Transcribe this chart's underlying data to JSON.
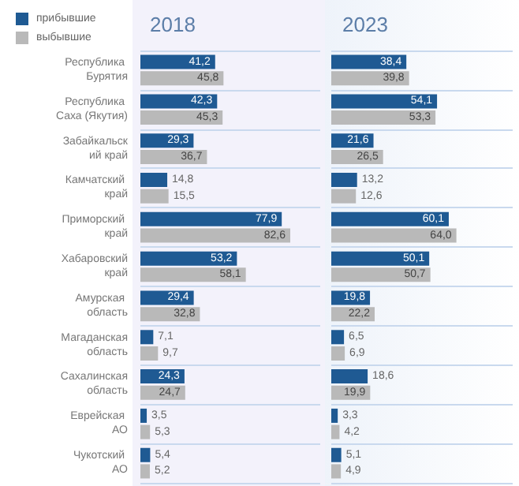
{
  "chart_data": [
    {
      "type": "bar",
      "orientation": "horizontal",
      "title": "2018",
      "tick_labels": "y",
      "grid": "y",
      "legend": "top left",
      "categories": [
        "Республика Бурятия",
        "Республика Саха (Якутия)",
        "Забайкальский край",
        "Камчатский край",
        "Приморский край",
        "Хабаровский край",
        "Амурская область",
        "Магаданская область",
        "Сахалинская область",
        "Еврейская АО",
        "Чукотский АО"
      ],
      "series": [
        {
          "name": "прибывшие",
          "color": "#1f5a93",
          "values": [
            41.2,
            42.3,
            29.3,
            14.8,
            77.9,
            53.2,
            29.4,
            7.1,
            24.3,
            3.5,
            5.4
          ],
          "value_labels": [
            "41,2",
            "42,3",
            "29,3",
            "14,8",
            "77,9",
            "53,2",
            "29,4",
            "7,1",
            "24,3",
            "3,5",
            "5,4"
          ]
        },
        {
          "name": "выбывшие",
          "color": "#b9b9b9",
          "values": [
            45.8,
            45.3,
            36.7,
            15.5,
            82.6,
            58.1,
            32.8,
            9.7,
            24.7,
            5.3,
            5.2
          ],
          "value_labels": [
            "45,8",
            "45,3",
            "36,7",
            "15,5",
            "82,6",
            "58,1",
            "32,8",
            "9,7",
            "24,7",
            "5,3",
            "5,2"
          ]
        }
      ]
    },
    {
      "type": "bar",
      "orientation": "horizontal",
      "title": "2023",
      "tick_labels": false,
      "grid": "y",
      "categories": [
        "Республика Бурятия",
        "Республика Саха (Якутия)",
        "Забайкальский край",
        "Камчатский край",
        "Приморский край",
        "Хабаровский край",
        "Амурская область",
        "Магаданская область",
        "Сахалинская область",
        "Еврейская АО",
        "Чукотский АО"
      ],
      "series": [
        {
          "color": "#1f5a93",
          "values": [
            38.4,
            54.1,
            21.6,
            13.2,
            60.1,
            50.1,
            19.8,
            6.5,
            18.6,
            3.3,
            5.1
          ],
          "value_labels": [
            "38,4",
            "54,1",
            "21,6",
            "13,2",
            "60,1",
            "50,1",
            "19,8",
            "6,5",
            "18,6",
            "3,3",
            "5,1"
          ]
        },
        {
          "color": "#b9b9b9",
          "values": [
            39.8,
            53.3,
            26.5,
            12.6,
            64.0,
            50.7,
            22.2,
            6.9,
            19.9,
            4.2,
            4.9
          ],
          "value_labels": [
            "39,8",
            "53,3",
            "26,5",
            "12,6",
            "64,0",
            "50,7",
            "22,2",
            "6,9",
            "19,9",
            "4,2",
            "4,9"
          ]
        }
      ]
    }
  ]
}
